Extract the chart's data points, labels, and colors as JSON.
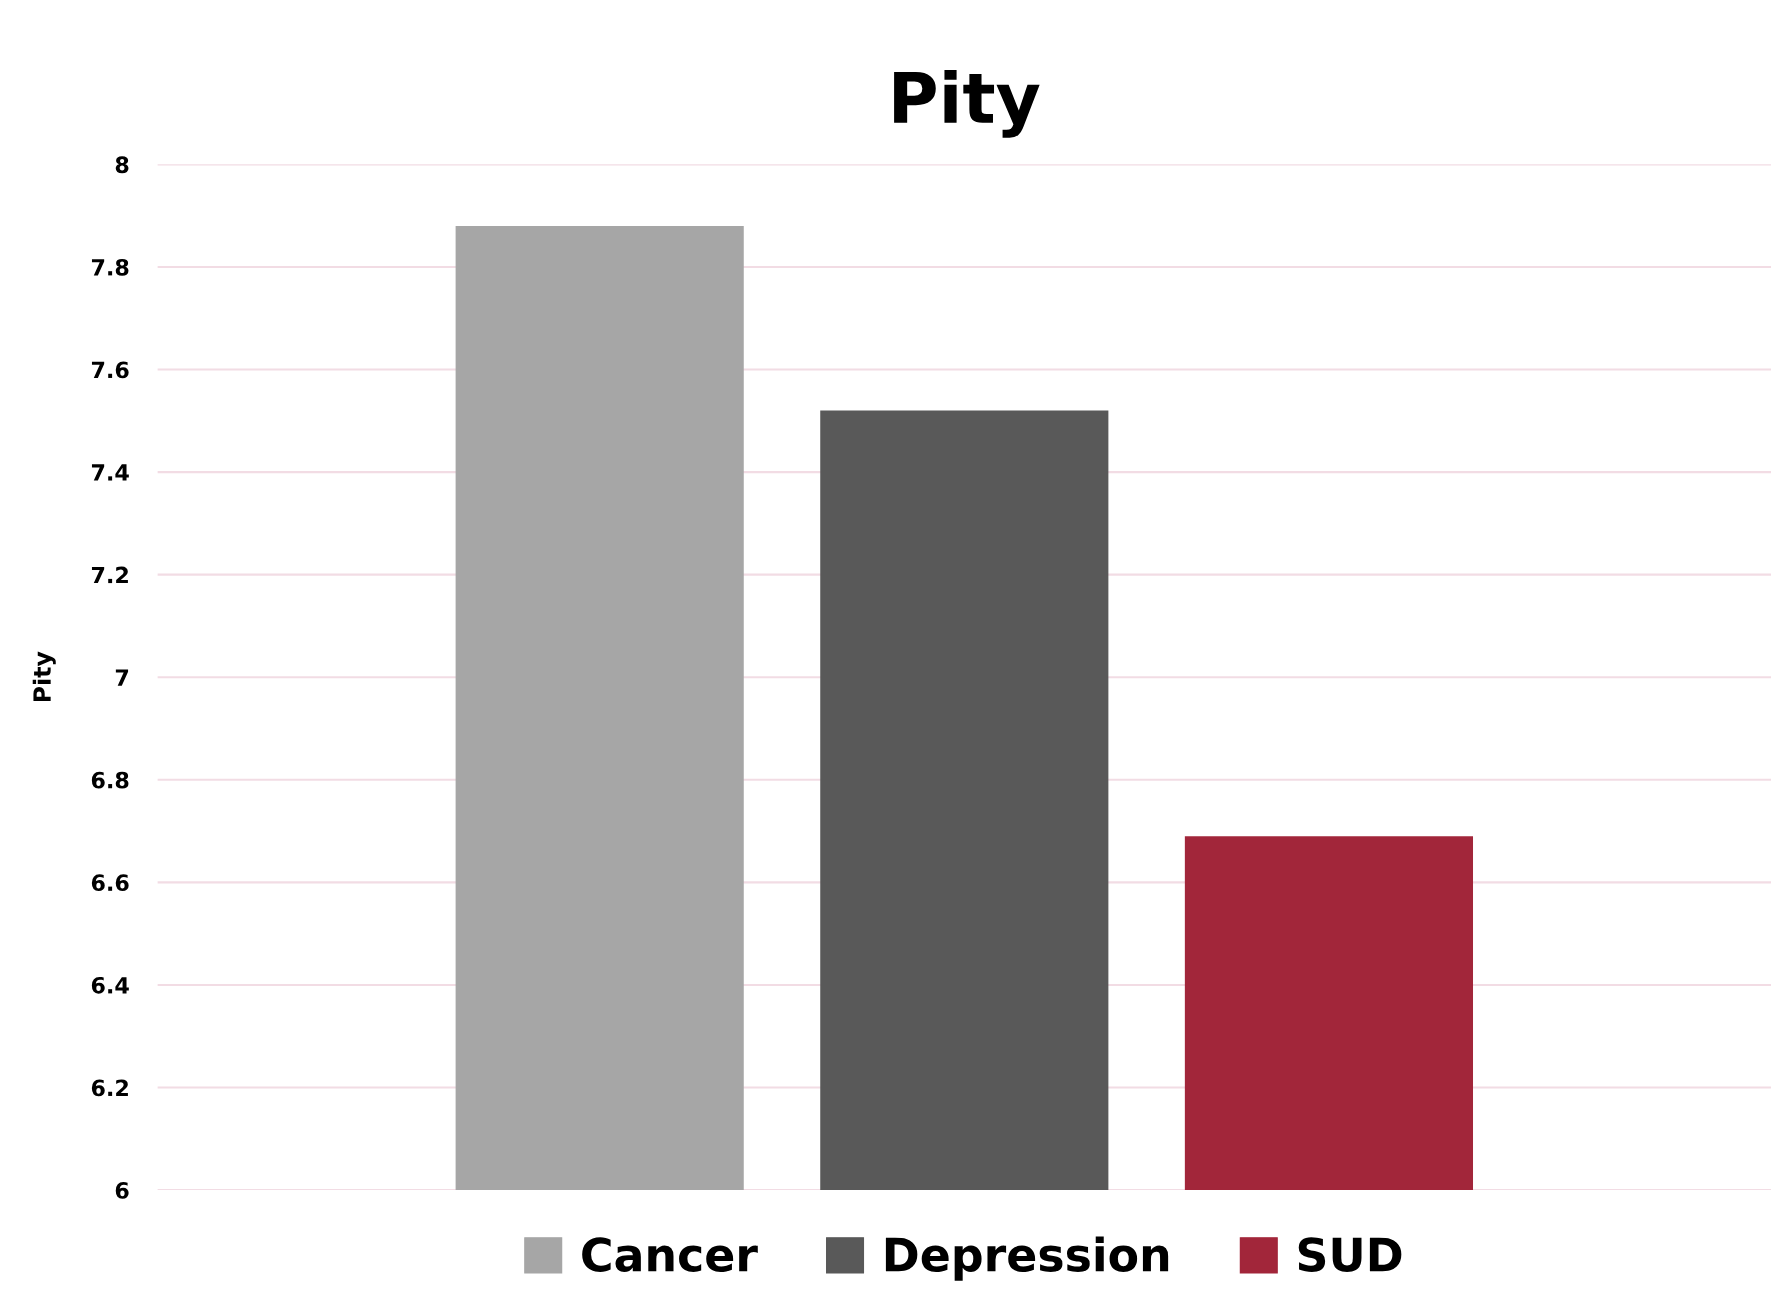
{
  "chart_data": {
    "type": "bar",
    "title": "Pity",
    "ylabel": "Pity",
    "categories": [
      null
    ],
    "series": [
      {
        "name": "Cancer",
        "color": "#a6a6a6",
        "values": [
          7.88
        ]
      },
      {
        "name": "Depression",
        "color": "#595959",
        "values": [
          7.52
        ]
      },
      {
        "name": "SUD",
        "color": "#a2263a",
        "values": [
          6.69
        ]
      }
    ],
    "ylim": [
      6,
      8
    ],
    "yticks": [
      6,
      6.2,
      6.4,
      6.6,
      6.8,
      7,
      7.2,
      7.4,
      7.6,
      7.8,
      8
    ],
    "grid": "y",
    "legend": "bottom",
    "tick_labels": "y"
  }
}
